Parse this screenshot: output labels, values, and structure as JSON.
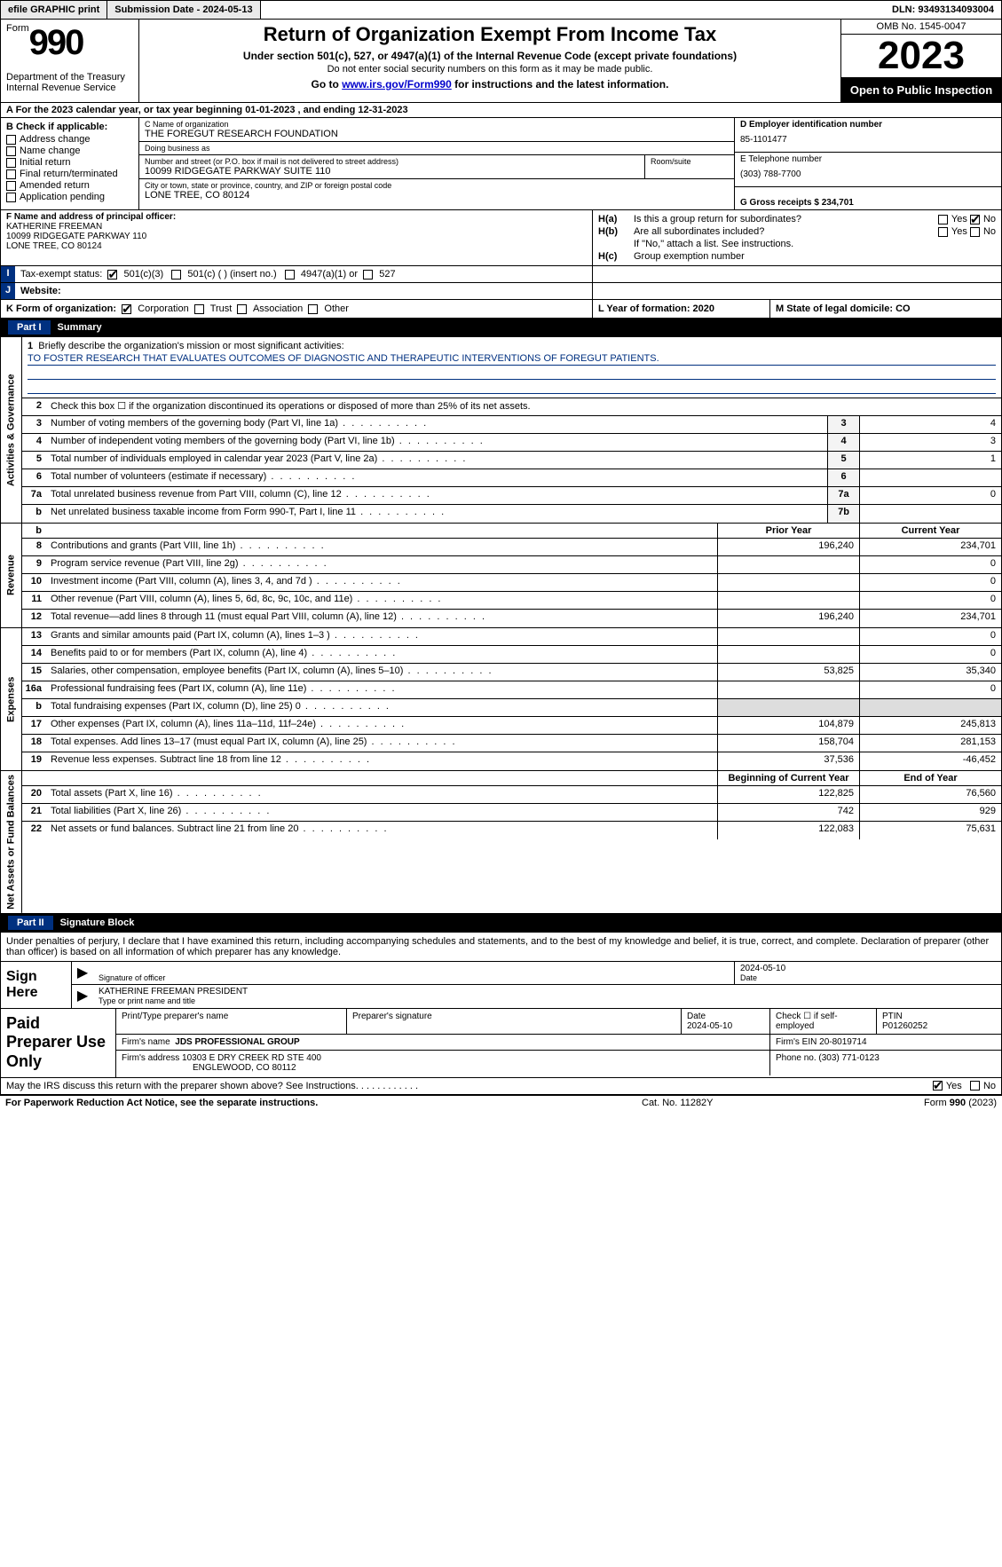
{
  "topbar": {
    "efile": "efile GRAPHIC print",
    "submission": "Submission Date - 2024-05-13",
    "dln": "DLN: 93493134093004"
  },
  "header": {
    "form_word": "Form",
    "form_num": "990",
    "title": "Return of Organization Exempt From Income Tax",
    "subtitle": "Under section 501(c), 527, or 4947(a)(1) of the Internal Revenue Code (except private foundations)",
    "ssn_note": "Do not enter social security numbers on this form as it may be made public.",
    "goto_pre": "Go to ",
    "goto_link": "www.irs.gov/Form990",
    "goto_post": " for instructions and the latest information.",
    "dept": "Department of the Treasury\nInternal Revenue Service",
    "omb": "OMB No. 1545-0047",
    "year": "2023",
    "open": "Open to Public Inspection"
  },
  "line_a": "A For the 2023 calendar year, or tax year beginning 01-01-2023   , and ending 12-31-2023",
  "box_b": {
    "hdr": "B Check if applicable:",
    "opts": [
      "Address change",
      "Name change",
      "Initial return",
      "Final return/terminated",
      "Amended return",
      "Application pending"
    ]
  },
  "box_c": {
    "name_lbl": "C Name of organization",
    "name": "THE FOREGUT RESEARCH FOUNDATION",
    "dba_lbl": "Doing business as",
    "dba": "",
    "addr_lbl": "Number and street (or P.O. box if mail is not delivered to street address)",
    "room_lbl": "Room/suite",
    "addr": "10099 RIDGEGATE PARKWAY SUITE 110",
    "city_lbl": "City or town, state or province, country, and ZIP or foreign postal code",
    "city": "LONE TREE, CO  80124"
  },
  "box_d": {
    "ein_lbl": "D Employer identification number",
    "ein": "85-1101477",
    "tel_lbl": "E Telephone number",
    "tel": "(303) 788-7700",
    "gross_lbl": "G Gross receipts $ 234,701"
  },
  "box_f": {
    "lbl": "F  Name and address of principal officer:",
    "name": "KATHERINE FREEMAN",
    "addr1": "10099 RIDGEGATE PARKWAY 110",
    "addr2": "LONE TREE, CO  80124"
  },
  "box_h": {
    "ha_lbl": "H(a)",
    "ha_txt": "Is this a group return for subordinates?",
    "hb_lbl": "H(b)",
    "hb_txt": "Are all subordinates included?",
    "hb_note": "If \"No,\" attach a list. See instructions.",
    "hc_lbl": "H(c)",
    "hc_txt": "Group exemption number ",
    "yes": "Yes",
    "no": "No"
  },
  "row_i": {
    "lbl": "I",
    "txt": "Tax-exempt status:",
    "o1": "501(c)(3)",
    "o2": "501(c) (  ) (insert no.)",
    "o3": "4947(a)(1) or",
    "o4": "527"
  },
  "row_j": {
    "lbl": "J",
    "txt": "Website: "
  },
  "row_k": {
    "lbl": "K Form of organization:",
    "opts": [
      "Corporation",
      "Trust",
      "Association",
      "Other"
    ],
    "l_lbl": "L Year of formation: 2020",
    "m_lbl": "M State of legal domicile: CO"
  },
  "part1": {
    "num": "Part I",
    "title": "Summary"
  },
  "vtabs": {
    "gov": "Activities & Governance",
    "rev": "Revenue",
    "exp": "Expenses",
    "net": "Net Assets or Fund Balances"
  },
  "mission": {
    "lbl": "Briefly describe the organization's mission or most significant activities:",
    "txt": "TO FOSTER RESEARCH THAT EVALUATES OUTCOMES OF DIAGNOSTIC AND THERAPEUTIC INTERVENTIONS OF FOREGUT PATIENTS."
  },
  "gov_rows": [
    {
      "n": "2",
      "t": "Check this box ☐ if the organization discontinued its operations or disposed of more than 25% of its net assets.",
      "box": "",
      "v": ""
    },
    {
      "n": "3",
      "t": "Number of voting members of the governing body (Part VI, line 1a)",
      "box": "3",
      "v": "4"
    },
    {
      "n": "4",
      "t": "Number of independent voting members of the governing body (Part VI, line 1b)",
      "box": "4",
      "v": "3"
    },
    {
      "n": "5",
      "t": "Total number of individuals employed in calendar year 2023 (Part V, line 2a)",
      "box": "5",
      "v": "1"
    },
    {
      "n": "6",
      "t": "Total number of volunteers (estimate if necessary)",
      "box": "6",
      "v": ""
    },
    {
      "n": "7a",
      "t": "Total unrelated business revenue from Part VIII, column (C), line 12",
      "box": "7a",
      "v": "0"
    },
    {
      "n": "b",
      "t": "Net unrelated business taxable income from Form 990-T, Part I, line 11",
      "box": "7b",
      "v": ""
    }
  ],
  "col_hdrs": {
    "prior": "Prior Year",
    "current": "Current Year",
    "begin": "Beginning of Current Year",
    "end": "End of Year"
  },
  "rev_rows": [
    {
      "n": "8",
      "t": "Contributions and grants (Part VIII, line 1h)",
      "p": "196,240",
      "c": "234,701"
    },
    {
      "n": "9",
      "t": "Program service revenue (Part VIII, line 2g)",
      "p": "",
      "c": "0"
    },
    {
      "n": "10",
      "t": "Investment income (Part VIII, column (A), lines 3, 4, and 7d )",
      "p": "",
      "c": "0"
    },
    {
      "n": "11",
      "t": "Other revenue (Part VIII, column (A), lines 5, 6d, 8c, 9c, 10c, and 11e)",
      "p": "",
      "c": "0"
    },
    {
      "n": "12",
      "t": "Total revenue—add lines 8 through 11 (must equal Part VIII, column (A), line 12)",
      "p": "196,240",
      "c": "234,701"
    }
  ],
  "exp_rows": [
    {
      "n": "13",
      "t": "Grants and similar amounts paid (Part IX, column (A), lines 1–3 )",
      "p": "",
      "c": "0"
    },
    {
      "n": "14",
      "t": "Benefits paid to or for members (Part IX, column (A), line 4)",
      "p": "",
      "c": "0"
    },
    {
      "n": "15",
      "t": "Salaries, other compensation, employee benefits (Part IX, column (A), lines 5–10)",
      "p": "53,825",
      "c": "35,340"
    },
    {
      "n": "16a",
      "t": "Professional fundraising fees (Part IX, column (A), line 11e)",
      "p": "",
      "c": "0"
    },
    {
      "n": "b",
      "t": "Total fundraising expenses (Part IX, column (D), line 25) 0",
      "p": "gray",
      "c": "gray"
    },
    {
      "n": "17",
      "t": "Other expenses (Part IX, column (A), lines 11a–11d, 11f–24e)",
      "p": "104,879",
      "c": "245,813"
    },
    {
      "n": "18",
      "t": "Total expenses. Add lines 13–17 (must equal Part IX, column (A), line 25)",
      "p": "158,704",
      "c": "281,153"
    },
    {
      "n": "19",
      "t": "Revenue less expenses. Subtract line 18 from line 12",
      "p": "37,536",
      "c": "-46,452"
    }
  ],
  "net_rows": [
    {
      "n": "20",
      "t": "Total assets (Part X, line 16)",
      "p": "122,825",
      "c": "76,560"
    },
    {
      "n": "21",
      "t": "Total liabilities (Part X, line 26)",
      "p": "742",
      "c": "929"
    },
    {
      "n": "22",
      "t": "Net assets or fund balances. Subtract line 21 from line 20",
      "p": "122,083",
      "c": "75,631"
    }
  ],
  "part2": {
    "num": "Part II",
    "title": "Signature Block"
  },
  "sig_intro": "Under penalties of perjury, I declare that I have examined this return, including accompanying schedules and statements, and to the best of my knowledge and belief, it is true, correct, and complete. Declaration of preparer (other than officer) is based on all information of which preparer has any knowledge.",
  "sign_here": "Sign Here",
  "sig": {
    "date": "2024-05-10",
    "sig_lbl": "Signature of officer",
    "name": "KATHERINE FREEMAN  PRESIDENT",
    "name_lbl": "Type or print name and title",
    "date_lbl": "Date"
  },
  "paid": {
    "hdr": "Paid Preparer Use Only",
    "c1": "Print/Type preparer's name",
    "c2": "Preparer's signature",
    "c3_lbl": "Date",
    "c3": "2024-05-10",
    "c4_lbl": "Check ☐ if self-employed",
    "c5_lbl": "PTIN",
    "c5": "P01260252",
    "firm_lbl": "Firm's name   ",
    "firm": "JDS PROFESSIONAL GROUP",
    "ein_lbl": "Firm's EIN ",
    "ein": "20-8019714",
    "addr_lbl": "Firm's address ",
    "addr1": "10303 E DRY CREEK RD STE 400",
    "addr2": "ENGLEWOOD, CO  80112",
    "phone_lbl": "Phone no. ",
    "phone": "(303) 771-0123"
  },
  "discuss": {
    "txt": "May the IRS discuss this return with the preparer shown above? See Instructions.",
    "yes": "Yes",
    "no": "No"
  },
  "footer": {
    "l": "For Paperwork Reduction Act Notice, see the separate instructions.",
    "m": "Cat. No. 11282Y",
    "r_pre": "Form ",
    "r_form": "990",
    "r_post": " (2023)"
  }
}
